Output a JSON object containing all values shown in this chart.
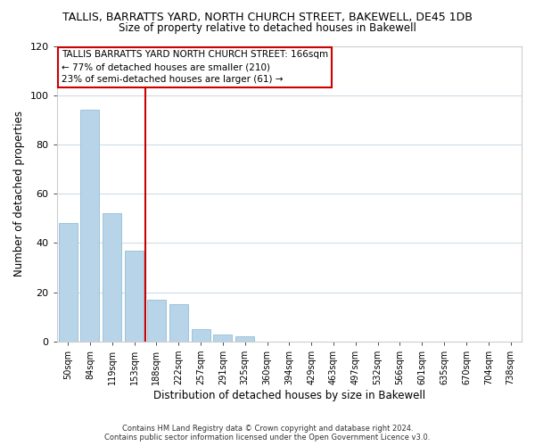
{
  "title_line1": "TALLIS, BARRATTS YARD, NORTH CHURCH STREET, BAKEWELL, DE45 1DB",
  "title_line2": "Size of property relative to detached houses in Bakewell",
  "xlabel": "Distribution of detached houses by size in Bakewell",
  "ylabel": "Number of detached properties",
  "bar_labels": [
    "50sqm",
    "84sqm",
    "119sqm",
    "153sqm",
    "188sqm",
    "222sqm",
    "257sqm",
    "291sqm",
    "325sqm",
    "360sqm",
    "394sqm",
    "429sqm",
    "463sqm",
    "497sqm",
    "532sqm",
    "566sqm",
    "601sqm",
    "635sqm",
    "670sqm",
    "704sqm",
    "738sqm"
  ],
  "bar_values": [
    48,
    94,
    52,
    37,
    17,
    15,
    5,
    3,
    2,
    0,
    0,
    0,
    0,
    0,
    0,
    0,
    0,
    0,
    0,
    0,
    0
  ],
  "bar_color": "#b8d4e8",
  "bar_edgecolor": "#9dc3da",
  "reference_line_x": 3.5,
  "reference_line_color": "#cc0000",
  "ylim": [
    0,
    120
  ],
  "yticks": [
    0,
    20,
    40,
    60,
    80,
    100,
    120
  ],
  "annotation_title": "TALLIS BARRATTS YARD NORTH CHURCH STREET: 166sqm",
  "annotation_line2": "← 77% of detached houses are smaller (210)",
  "annotation_line3": "23% of semi-detached houses are larger (61) →",
  "annotation_box_color": "#ffffff",
  "annotation_border_color": "#cc0000",
  "footer_line1": "Contains HM Land Registry data © Crown copyright and database right 2024.",
  "footer_line2": "Contains public sector information licensed under the Open Government Licence v3.0.",
  "background_color": "#ffffff",
  "grid_color": "#ccdde8"
}
